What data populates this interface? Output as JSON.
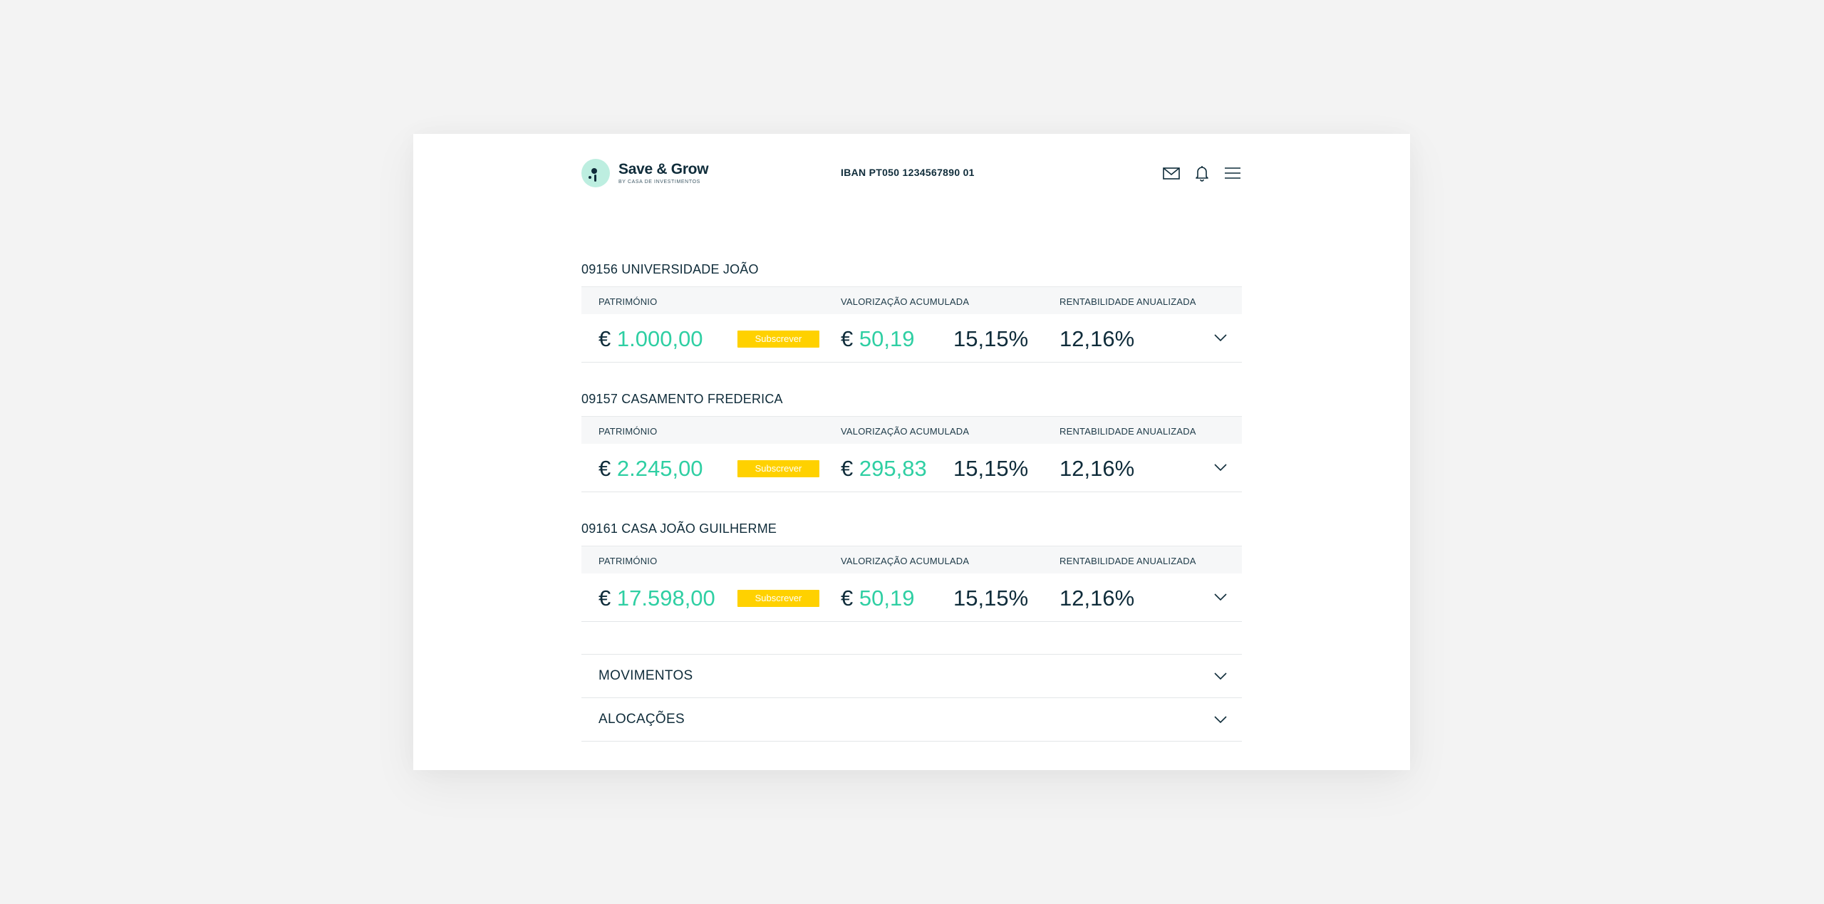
{
  "header": {
    "logo_name": "Save & Grow",
    "logo_sub": "BY CASA DE INVESTIMENTOS",
    "iban": "IBAN PT050 1234567890 01",
    "icons": [
      "mail-icon",
      "bell-icon",
      "menu-icon"
    ]
  },
  "columns": {
    "patrimonio": "PATRIMÓNIO",
    "valorizacao": "VALORIZAÇÃO ACUMULADA",
    "rentabilidade": "RENTABILIDADE ANUALIZADA"
  },
  "subscribe_label": "Subscrever",
  "currency": "€",
  "accounts": [
    {
      "title": "09156 UNIVERSIDADE JOÃO",
      "patrimonio": "1.000,00",
      "valorizacao": "50,19",
      "valorizacao_pct": "15,15%",
      "rentabilidade": "12,16%"
    },
    {
      "title": "09157 CASAMENTO FREDERICA",
      "patrimonio": "2.245,00",
      "valorizacao": "295,83",
      "valorizacao_pct": "15,15%",
      "rentabilidade": "12,16%"
    },
    {
      "title": "09161 CASA JOÃO GUILHERME",
      "patrimonio": "17.598,00",
      "valorizacao": "50,19",
      "valorizacao_pct": "15,15%",
      "rentabilidade": "12,16%"
    }
  ],
  "sections": [
    {
      "label": "MOVIMENTOS"
    },
    {
      "label": "ALOCAÇÕES"
    }
  ],
  "colors": {
    "accent_green": "#2fcfa3",
    "button_yellow": "#ffd100",
    "text_dark": "#0f2c3a",
    "logo_mint": "#bdeee0"
  }
}
